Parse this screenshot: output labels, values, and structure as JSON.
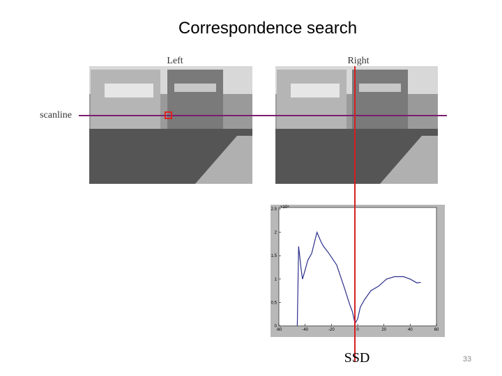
{
  "title": "Correspondence search",
  "left_label": "Left",
  "right_label": "Right",
  "scanline_label": "scanline",
  "ssd_label": "SSD",
  "page_number": "33",
  "plot": {
    "type": "line",
    "y_scale_label": "×10⁴",
    "xlim": [
      -60,
      60
    ],
    "ylim": [
      0,
      2.5
    ],
    "xticks": [
      -60,
      -40,
      -20,
      0,
      20,
      40,
      60
    ],
    "yticks": [
      0,
      0.5,
      1,
      1.5,
      2,
      2.5
    ],
    "color": "#2b2f8a",
    "x": [
      -46,
      -45,
      -43,
      -42,
      -40,
      -38,
      -35,
      -31,
      -28,
      -26,
      -22,
      -16,
      -10,
      -6,
      -4,
      -2,
      0,
      2,
      5,
      10,
      16,
      22,
      28,
      35,
      40,
      45,
      48
    ],
    "y": [
      0,
      1.7,
      1.2,
      1.0,
      1.2,
      1.4,
      1.55,
      2.0,
      1.8,
      1.7,
      1.55,
      1.3,
      0.8,
      0.45,
      0.3,
      0.05,
      0.15,
      0.4,
      0.55,
      0.75,
      0.85,
      1.0,
      1.05,
      1.05,
      1.0,
      0.92,
      0.93
    ]
  }
}
